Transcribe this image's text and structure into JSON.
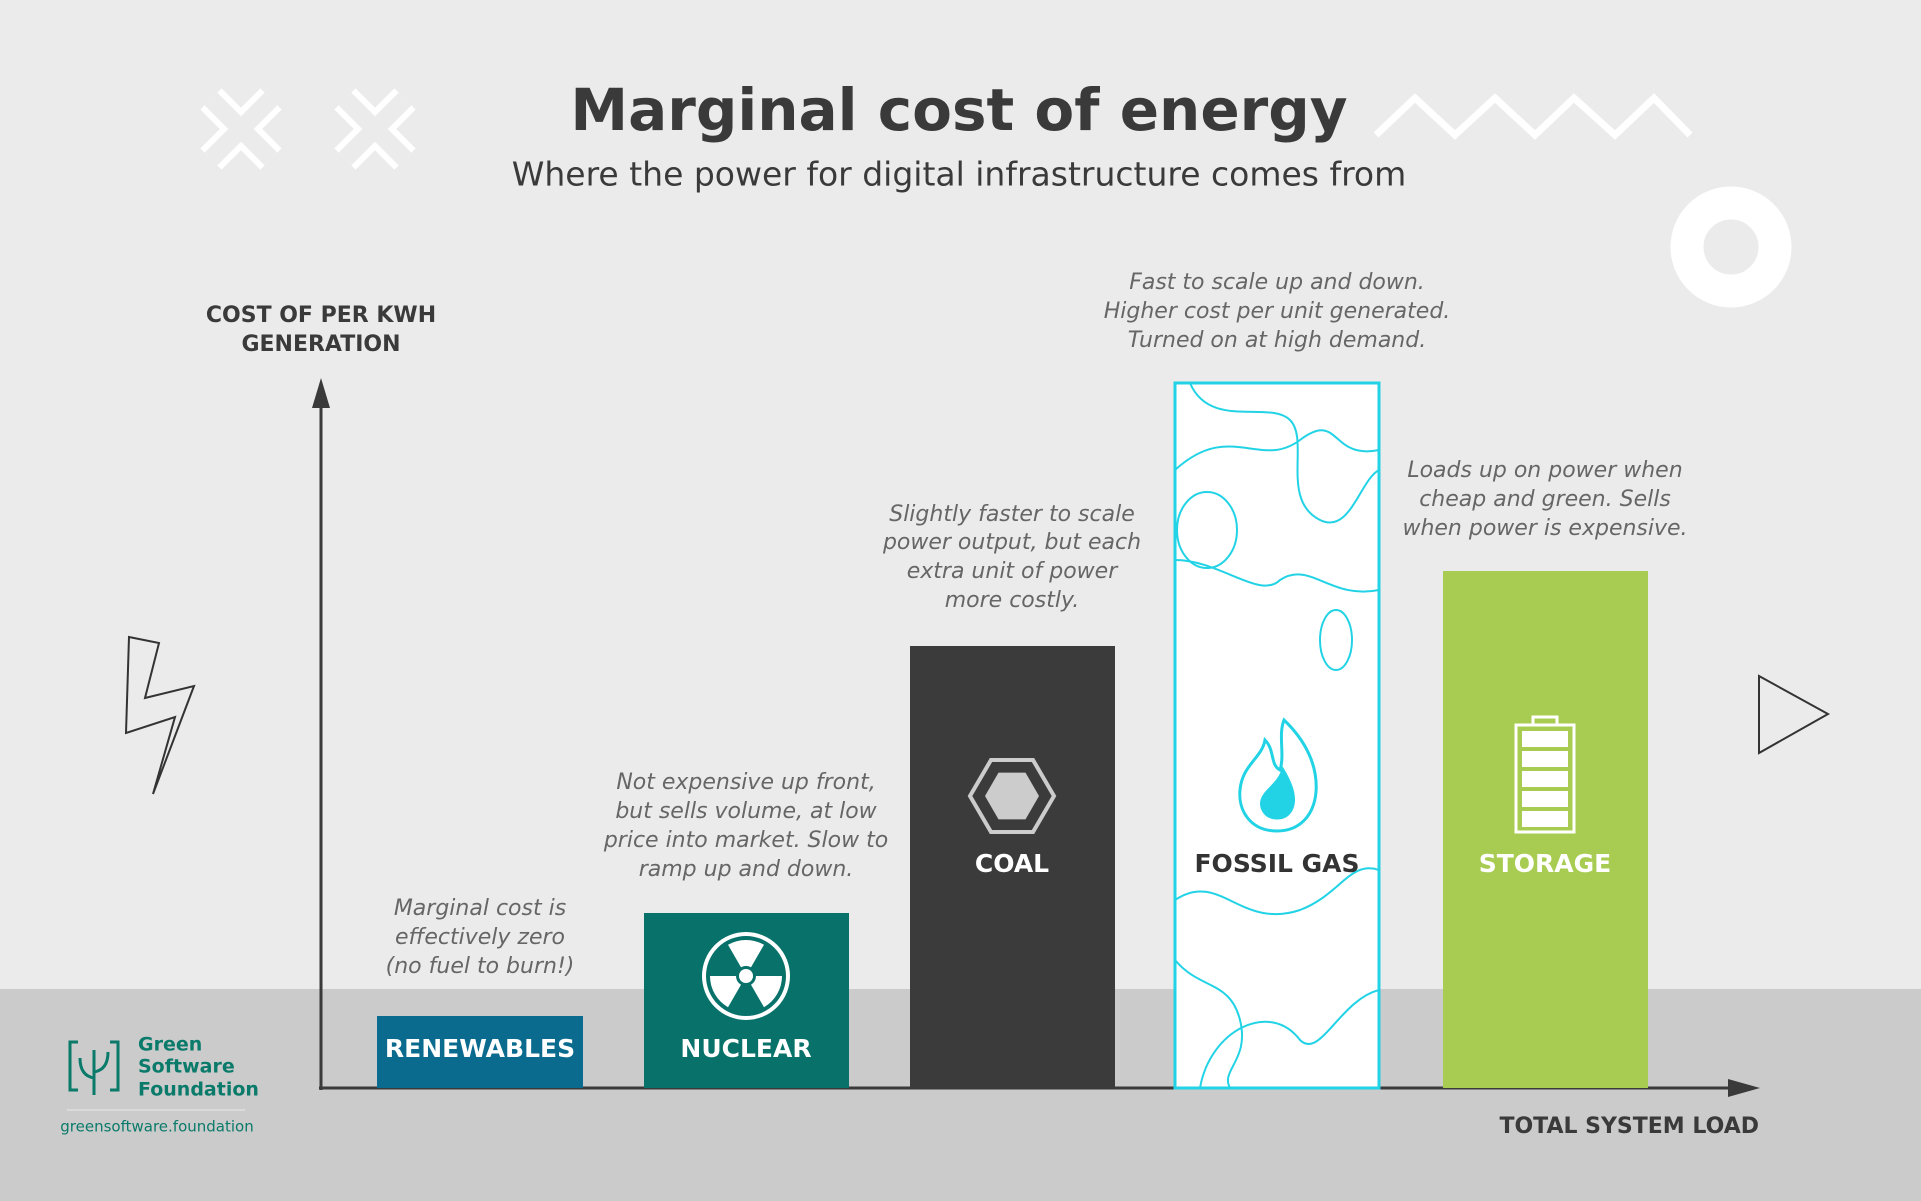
{
  "header": {
    "title": "Marginal cost of energy",
    "subtitle": "Where the power for digital infrastructure comes from"
  },
  "axes": {
    "y_label": [
      "COST OF PER KWH",
      "GENERATION"
    ],
    "x_label": "TOTAL SYSTEM LOAD"
  },
  "bars": [
    {
      "label": "RENEWABLES",
      "color": "#0b6b8f",
      "note": [
        "Marginal cost is",
        "effectively zero",
        "(no fuel to burn!)"
      ]
    },
    {
      "label": "NUCLEAR",
      "color": "#08726a",
      "note": [
        "Not expensive up front,",
        "but sells volume, at low",
        "price into market. Slow to",
        "ramp up and down."
      ]
    },
    {
      "label": "COAL",
      "color": "#3b3b3b",
      "note": [
        "Slightly faster to scale",
        "power output, but each",
        "extra unit of power",
        "more costly."
      ]
    },
    {
      "label": "FOSSIL GAS",
      "color": "#ffffff",
      "note": [
        "Fast to scale up and down.",
        "Higher cost per unit generated.",
        "Turned on at high demand."
      ]
    },
    {
      "label": "STORAGE",
      "color": "#a8cc52",
      "note": [
        "Loads up on power when",
        "cheap and green. Sells",
        "when power is expensive."
      ]
    }
  ],
  "logo": {
    "name": [
      "Green",
      "Software",
      "Foundation"
    ],
    "url": "greensoftware.foundation"
  }
}
